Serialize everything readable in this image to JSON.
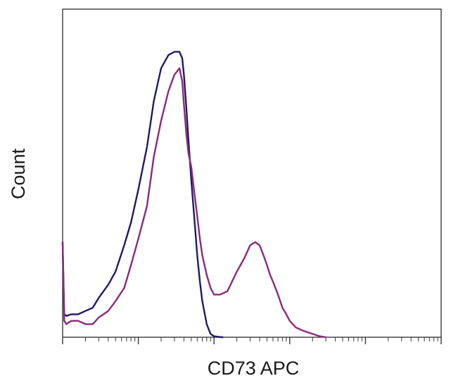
{
  "chart_data": {
    "type": "line",
    "title": "",
    "xlabel": "CD73 APC",
    "ylabel": "Count",
    "x_scale": "log",
    "xlim": [
      1,
      100000
    ],
    "ylim": [
      0,
      1
    ],
    "grid": false,
    "legend": "none",
    "series": [
      {
        "color": "#1f1a66",
        "x": [
          1,
          1.05,
          1.12,
          1.3,
          1.6,
          2,
          2.5,
          3,
          4,
          5,
          6.5,
          8,
          10,
          13,
          16,
          20,
          25,
          30,
          35,
          38,
          40,
          43,
          46,
          50,
          55,
          60,
          65,
          70,
          80,
          90,
          100,
          115,
          130
        ],
        "y": [
          0.29,
          0.07,
          0.065,
          0.07,
          0.07,
          0.08,
          0.09,
          0.12,
          0.16,
          0.2,
          0.28,
          0.35,
          0.45,
          0.58,
          0.72,
          0.82,
          0.86,
          0.87,
          0.87,
          0.85,
          0.8,
          0.7,
          0.6,
          0.48,
          0.36,
          0.25,
          0.17,
          0.11,
          0.04,
          0.01,
          0.003,
          0.001,
          0
        ]
      },
      {
        "color": "#8a2a7a",
        "x": [
          1,
          1.05,
          1.12,
          1.3,
          1.6,
          2,
          2.5,
          3,
          4,
          5,
          6.5,
          8,
          10,
          13,
          16,
          20,
          25,
          30,
          35,
          38,
          40,
          43,
          46,
          50,
          55,
          60,
          65,
          70,
          80,
          90,
          100,
          120,
          150,
          200,
          250,
          300,
          350,
          400,
          450,
          500,
          550,
          600,
          700,
          800,
          900,
          1000,
          1200,
          1500,
          2000,
          2500,
          3000
        ],
        "y": [
          0.29,
          0.05,
          0.04,
          0.05,
          0.05,
          0.04,
          0.04,
          0.06,
          0.08,
          0.11,
          0.15,
          0.22,
          0.3,
          0.4,
          0.55,
          0.66,
          0.75,
          0.8,
          0.82,
          0.78,
          0.71,
          0.62,
          0.56,
          0.52,
          0.44,
          0.37,
          0.3,
          0.25,
          0.19,
          0.15,
          0.13,
          0.13,
          0.14,
          0.2,
          0.24,
          0.28,
          0.29,
          0.28,
          0.25,
          0.22,
          0.19,
          0.17,
          0.13,
          0.09,
          0.07,
          0.05,
          0.03,
          0.02,
          0.01,
          0.003,
          0
        ]
      }
    ]
  }
}
